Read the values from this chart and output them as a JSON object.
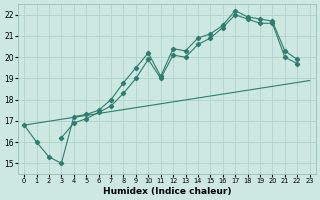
{
  "background_color": "#cce8e0",
  "grid_color": "#aacfca",
  "line_color": "#2e7d6e",
  "xlabel": "Humidex (Indice chaleur)",
  "xlim": [
    -0.5,
    23.5
  ],
  "ylim": [
    14.5,
    22.5
  ],
  "xticks": [
    0,
    1,
    2,
    3,
    4,
    5,
    6,
    7,
    8,
    9,
    10,
    11,
    12,
    13,
    14,
    15,
    16,
    17,
    18,
    19,
    20,
    21,
    22,
    23
  ],
  "yticks": [
    15,
    16,
    17,
    18,
    19,
    20,
    21,
    22
  ],
  "curve1_x": [
    0,
    1,
    2,
    3,
    4,
    5,
    6,
    7,
    8,
    9,
    10,
    11,
    12,
    13,
    14,
    15,
    16,
    17,
    18,
    19,
    20,
    21,
    22
  ],
  "curve1_y": [
    16.8,
    16.0,
    15.3,
    15.0,
    17.2,
    17.3,
    17.5,
    18.0,
    18.8,
    19.5,
    20.2,
    19.1,
    20.4,
    20.3,
    20.9,
    21.1,
    21.5,
    22.2,
    21.9,
    21.8,
    21.7,
    20.3,
    19.9
  ],
  "curve2_x": [
    3,
    4,
    5,
    6,
    7,
    8,
    9,
    10,
    11,
    12,
    13,
    14,
    15,
    16,
    17,
    18,
    19,
    20,
    21,
    22
  ],
  "curve2_y": [
    16.2,
    16.9,
    17.1,
    17.4,
    17.7,
    18.3,
    19.0,
    19.9,
    19.0,
    20.1,
    20.0,
    20.6,
    20.9,
    21.4,
    22.0,
    21.8,
    21.6,
    21.6,
    20.0,
    19.7
  ],
  "line3_x": [
    0,
    23
  ],
  "line3_y": [
    16.8,
    18.9
  ]
}
